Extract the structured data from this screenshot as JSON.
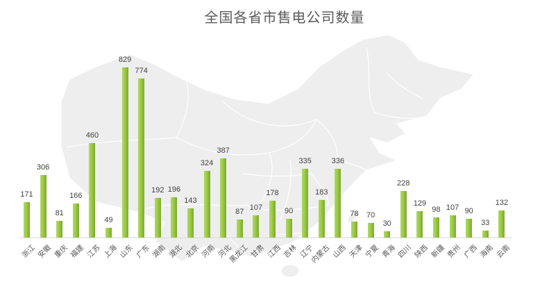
{
  "title": "全国各省市售电公司数量",
  "colors": {
    "background": "#ffffff",
    "title": "#595959",
    "value_label": "#3f3f3f",
    "category_label": "#595959",
    "axis_line": "#d9d9d9",
    "bar_light": "#b0d966",
    "bar_mid": "#9ccb45",
    "bar_dark": "#7ca92c",
    "map_fill": "#eeeeee",
    "map_border": "#ffffff"
  },
  "chart_data": {
    "type": "bar",
    "title": "全国各省市售电公司数量",
    "categories": [
      "浙江",
      "安徽",
      "重庆",
      "福建",
      "江苏",
      "上海",
      "山东",
      "广东",
      "湖南",
      "湖北",
      "北京",
      "河南",
      "河北",
      "黑龙江",
      "甘肃",
      "江西",
      "吉林",
      "辽宁",
      "内蒙古",
      "山西",
      "天津",
      "宁夏",
      "青海",
      "四川",
      "陕西",
      "新疆",
      "贵州",
      "广西",
      "海南",
      "云南"
    ],
    "values": [
      171,
      306,
      81,
      166,
      460,
      49,
      829,
      774,
      192,
      196,
      143,
      324,
      387,
      87,
      107,
      178,
      90,
      335,
      183,
      336,
      78,
      70,
      30,
      228,
      129,
      98,
      107,
      90,
      33,
      132
    ],
    "xlabel": "",
    "ylabel": "",
    "ylim": [
      0,
      829
    ],
    "grid": false,
    "legend": false,
    "data_labels": "outside-end",
    "category_label_rotation": -45,
    "background_art": "china-map-silhouette"
  }
}
